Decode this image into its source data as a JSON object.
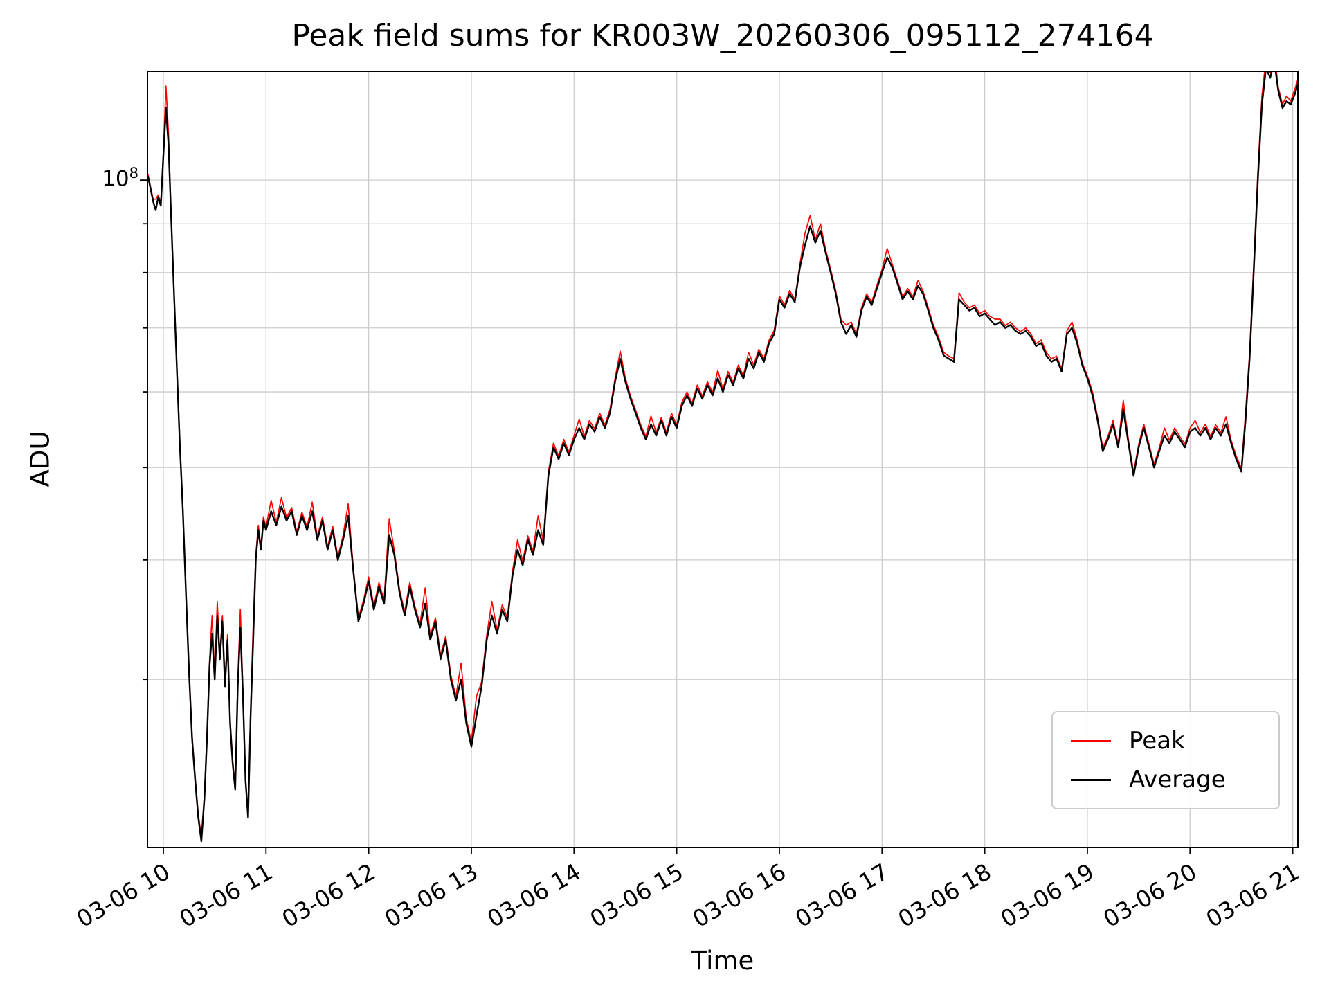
{
  "chart_data": {
    "type": "line",
    "title": "Peak field sums for KR003W_20260306_095112_274164",
    "xlabel": "Time",
    "ylabel": "ADU",
    "grid": true,
    "x_axis": {
      "unit": "datetime (MM-DD HH)",
      "range_hours": [
        9.845,
        21.05
      ],
      "tick_hours": [
        10,
        11,
        12,
        13,
        14,
        15,
        16,
        17,
        18,
        19,
        20,
        21
      ],
      "tick_labels": [
        "03-06 10",
        "03-06 11",
        "03-06 12",
        "03-06 13",
        "03-06 14",
        "03-06 15",
        "03-06 16",
        "03-06 17",
        "03-06 18",
        "03-06 19",
        "03-06 20",
        "03-06 21"
      ]
    },
    "y_axis": {
      "scale": "log",
      "range": [
        20000000,
        130000000
      ],
      "major_tick": {
        "value": 100000000,
        "label_base": "10",
        "label_exponent": "8"
      },
      "minor_tick_values": [
        30000000,
        40000000,
        50000000,
        60000000,
        70000000,
        80000000,
        90000000
      ]
    },
    "legend": {
      "position": "lower right",
      "entries": [
        {
          "label": "Peak",
          "color": "#ff0000"
        },
        {
          "label": "Average",
          "color": "#000000"
        }
      ]
    },
    "values_scale": 10000000,
    "x_hours": [
      9.85,
      9.875,
      9.9,
      9.925,
      9.95,
      9.975,
      10.0,
      10.025,
      10.05,
      10.075,
      10.1,
      10.13,
      10.16,
      10.19,
      10.22,
      10.25,
      10.28,
      10.31,
      10.34,
      10.37,
      10.4,
      10.425,
      10.45,
      10.475,
      10.5,
      10.525,
      10.55,
      10.575,
      10.6,
      10.625,
      10.65,
      10.675,
      10.7,
      10.725,
      10.75,
      10.775,
      10.8,
      10.825,
      10.85,
      10.875,
      10.9,
      10.925,
      10.95,
      10.975,
      11.0,
      11.05,
      11.1,
      11.15,
      11.2,
      11.25,
      11.3,
      11.35,
      11.4,
      11.45,
      11.5,
      11.55,
      11.6,
      11.65,
      11.7,
      11.75,
      11.8,
      11.85,
      11.9,
      11.95,
      12.0,
      12.05,
      12.1,
      12.15,
      12.2,
      12.25,
      12.3,
      12.35,
      12.4,
      12.45,
      12.5,
      12.55,
      12.6,
      12.65,
      12.7,
      12.75,
      12.8,
      12.85,
      12.9,
      12.95,
      13.0,
      13.05,
      13.1,
      13.15,
      13.2,
      13.25,
      13.3,
      13.35,
      13.4,
      13.45,
      13.5,
      13.55,
      13.6,
      13.65,
      13.7,
      13.75,
      13.8,
      13.85,
      13.9,
      13.95,
      14.0,
      14.05,
      14.1,
      14.15,
      14.2,
      14.25,
      14.3,
      14.35,
      14.4,
      14.45,
      14.5,
      14.55,
      14.6,
      14.65,
      14.7,
      14.75,
      14.8,
      14.85,
      14.9,
      14.95,
      15.0,
      15.05,
      15.1,
      15.15,
      15.2,
      15.25,
      15.3,
      15.35,
      15.4,
      15.45,
      15.5,
      15.55,
      15.6,
      15.65,
      15.7,
      15.75,
      15.8,
      15.85,
      15.9,
      15.95,
      16.0,
      16.05,
      16.1,
      16.15,
      16.2,
      16.25,
      16.3,
      16.35,
      16.4,
      16.45,
      16.5,
      16.55,
      16.6,
      16.65,
      16.7,
      16.75,
      16.8,
      16.85,
      16.9,
      16.95,
      17.0,
      17.05,
      17.1,
      17.15,
      17.2,
      17.25,
      17.3,
      17.35,
      17.4,
      17.45,
      17.5,
      17.55,
      17.6,
      17.65,
      17.7,
      17.75,
      17.8,
      17.85,
      17.9,
      17.95,
      18.0,
      18.05,
      18.1,
      18.15,
      18.2,
      18.25,
      18.3,
      18.35,
      18.4,
      18.45,
      18.5,
      18.55,
      18.6,
      18.65,
      18.7,
      18.75,
      18.8,
      18.85,
      18.9,
      18.95,
      19.0,
      19.05,
      19.1,
      19.15,
      19.2,
      19.25,
      19.3,
      19.35,
      19.4,
      19.45,
      19.5,
      19.55,
      19.6,
      19.65,
      19.7,
      19.75,
      19.8,
      19.85,
      19.9,
      19.95,
      20.0,
      20.05,
      20.1,
      20.15,
      20.2,
      20.25,
      20.3,
      20.35,
      20.4,
      20.45,
      20.5,
      20.54,
      20.58,
      20.62,
      20.66,
      20.7,
      20.74,
      20.78,
      20.82,
      20.86,
      20.9,
      20.94,
      20.98,
      21.02,
      21.05
    ],
    "series": [
      {
        "name": "Peak",
        "color": "#ff0000",
        "linewidth": 1.7,
        "values": [
          10.15,
          9.85,
          9.55,
          9.55,
          9.65,
          9.45,
          10.7,
          12.55,
          11.2,
          9.25,
          7.85,
          6.45,
          5.35,
          4.52,
          3.72,
          3.08,
          2.62,
          2.37,
          2.17,
          2.05,
          2.27,
          2.63,
          3.14,
          3.5,
          3.03,
          3.62,
          3.18,
          3.5,
          2.98,
          3.34,
          2.73,
          2.47,
          2.32,
          2.99,
          3.55,
          2.93,
          2.37,
          2.17,
          2.79,
          3.42,
          4.05,
          4.35,
          4.13,
          4.44,
          4.33,
          4.62,
          4.38,
          4.65,
          4.43,
          4.54,
          4.28,
          4.49,
          4.33,
          4.6,
          4.23,
          4.44,
          4.13,
          4.34,
          4.03,
          4.24,
          4.58,
          3.93,
          3.48,
          3.63,
          3.84,
          3.58,
          3.79,
          3.63,
          4.42,
          4.09,
          3.73,
          3.53,
          3.79,
          3.58,
          3.43,
          3.74,
          3.33,
          3.48,
          3.18,
          3.33,
          3.03,
          2.88,
          3.12,
          2.73,
          2.58,
          2.88,
          2.98,
          3.34,
          3.62,
          3.38,
          3.59,
          3.48,
          3.89,
          4.2,
          3.99,
          4.24,
          4.09,
          4.45,
          4.19,
          4.95,
          5.3,
          5.14,
          5.35,
          5.19,
          5.4,
          5.62,
          5.39,
          5.6,
          5.49,
          5.7,
          5.54,
          5.75,
          6.2,
          6.62,
          6.2,
          5.94,
          5.74,
          5.54,
          5.39,
          5.66,
          5.44,
          5.64,
          5.44,
          5.7,
          5.54,
          5.85,
          6.0,
          5.84,
          6.1,
          5.94,
          6.15,
          5.99,
          6.32,
          6.04,
          6.3,
          6.14,
          6.4,
          6.24,
          6.6,
          6.4,
          6.65,
          6.5,
          6.8,
          6.96,
          7.56,
          7.4,
          7.66,
          7.5,
          8.16,
          8.8,
          9.18,
          8.66,
          9.0,
          8.46,
          8.06,
          7.65,
          7.15,
          7.05,
          7.1,
          6.9,
          7.35,
          7.6,
          7.45,
          7.76,
          8.06,
          8.48,
          8.16,
          7.85,
          7.55,
          7.7,
          7.55,
          7.85,
          7.65,
          7.35,
          7.05,
          6.85,
          6.6,
          6.54,
          6.5,
          7.62,
          7.45,
          7.35,
          7.4,
          7.25,
          7.3,
          7.2,
          7.15,
          7.15,
          7.04,
          7.1,
          7.0,
          6.94,
          7.0,
          6.9,
          6.74,
          6.8,
          6.6,
          6.5,
          6.54,
          6.34,
          6.95,
          7.1,
          6.8,
          6.44,
          6.24,
          6.0,
          5.64,
          5.24,
          5.39,
          5.6,
          5.29,
          5.88,
          5.34,
          4.94,
          5.29,
          5.55,
          5.29,
          5.04,
          5.24,
          5.5,
          5.34,
          5.5,
          5.39,
          5.29,
          5.5,
          5.6,
          5.44,
          5.55,
          5.39,
          5.54,
          5.44,
          5.65,
          5.34,
          5.14,
          4.99,
          5.7,
          6.6,
          8.15,
          10.2,
          12.25,
          13.4,
          12.95,
          13.55,
          12.5,
          12.0,
          12.25,
          12.1,
          12.45,
          12.75
        ]
      },
      {
        "name": "Average",
        "color": "#000000",
        "linewidth": 2.4,
        "values": [
          10.1,
          9.8,
          9.5,
          9.3,
          9.6,
          9.4,
          10.6,
          11.9,
          10.9,
          9.2,
          7.8,
          6.4,
          5.3,
          4.5,
          3.7,
          3.05,
          2.6,
          2.35,
          2.15,
          2.03,
          2.25,
          2.6,
          3.1,
          3.35,
          3.0,
          3.5,
          3.15,
          3.45,
          2.95,
          3.3,
          2.7,
          2.45,
          2.3,
          2.95,
          3.4,
          2.9,
          2.35,
          2.15,
          2.75,
          3.3,
          4.0,
          4.3,
          4.1,
          4.4,
          4.3,
          4.5,
          4.35,
          4.55,
          4.4,
          4.5,
          4.25,
          4.45,
          4.3,
          4.5,
          4.2,
          4.4,
          4.1,
          4.3,
          4.0,
          4.2,
          4.45,
          3.9,
          3.45,
          3.6,
          3.8,
          3.55,
          3.75,
          3.6,
          4.25,
          4.05,
          3.7,
          3.5,
          3.75,
          3.55,
          3.4,
          3.6,
          3.3,
          3.45,
          3.15,
          3.3,
          3.0,
          2.85,
          3.0,
          2.7,
          2.55,
          2.75,
          2.95,
          3.3,
          3.5,
          3.35,
          3.55,
          3.45,
          3.85,
          4.1,
          3.95,
          4.2,
          4.05,
          4.3,
          4.15,
          4.9,
          5.25,
          5.1,
          5.3,
          5.15,
          5.35,
          5.5,
          5.35,
          5.55,
          5.45,
          5.65,
          5.5,
          5.7,
          6.15,
          6.5,
          6.15,
          5.9,
          5.7,
          5.5,
          5.35,
          5.55,
          5.4,
          5.6,
          5.4,
          5.65,
          5.5,
          5.8,
          5.95,
          5.8,
          6.05,
          5.9,
          6.1,
          5.95,
          6.2,
          6.0,
          6.25,
          6.1,
          6.35,
          6.2,
          6.5,
          6.35,
          6.6,
          6.45,
          6.75,
          6.9,
          7.5,
          7.35,
          7.6,
          7.45,
          8.1,
          8.55,
          8.95,
          8.6,
          8.85,
          8.4,
          8.0,
          7.6,
          7.1,
          6.9,
          7.05,
          6.85,
          7.3,
          7.55,
          7.4,
          7.7,
          8.0,
          8.3,
          8.1,
          7.8,
          7.5,
          7.65,
          7.5,
          7.75,
          7.6,
          7.3,
          7.0,
          6.8,
          6.55,
          6.5,
          6.45,
          7.5,
          7.4,
          7.3,
          7.35,
          7.2,
          7.25,
          7.15,
          7.05,
          7.1,
          7.0,
          7.05,
          6.95,
          6.9,
          6.95,
          6.85,
          6.7,
          6.75,
          6.55,
          6.45,
          6.5,
          6.3,
          6.9,
          7.0,
          6.75,
          6.4,
          6.2,
          5.95,
          5.6,
          5.2,
          5.35,
          5.55,
          5.25,
          5.75,
          5.3,
          4.9,
          5.25,
          5.5,
          5.25,
          5.0,
          5.2,
          5.4,
          5.3,
          5.45,
          5.35,
          5.25,
          5.45,
          5.5,
          5.4,
          5.5,
          5.35,
          5.5,
          5.4,
          5.55,
          5.3,
          5.1,
          4.95,
          5.6,
          6.5,
          8.0,
          10.0,
          12.0,
          13.1,
          12.8,
          13.3,
          12.4,
          11.9,
          12.1,
          12.0,
          12.3,
          12.6
        ]
      }
    ]
  }
}
